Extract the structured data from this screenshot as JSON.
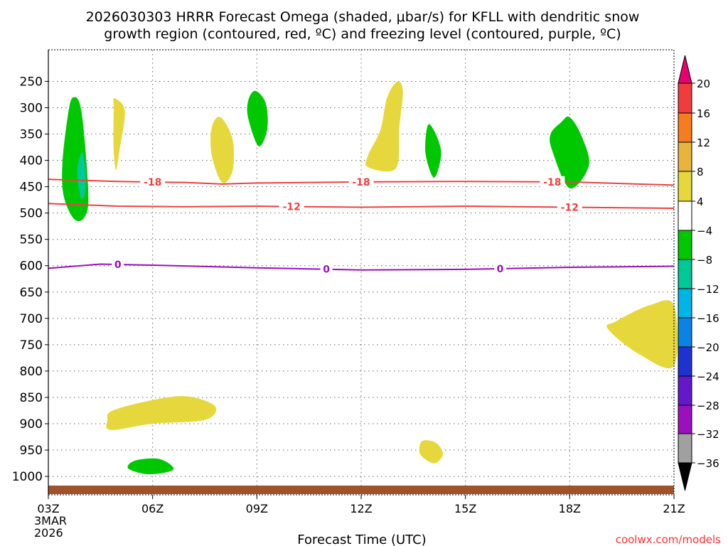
{
  "chart_data": {
    "type": "time-height",
    "title_line1": "2026030303 HRRR Forecast Omega (shaded, μbar/s) for KFLL with dendritic snow",
    "title_line2": "growth region (contoured, red, ºC) and freezing level (contoured, purple, ºC)",
    "xlabel": "Forecast Time (UTC)",
    "credit": "coolwx.com/models",
    "x_range_hours": [
      0,
      18
    ],
    "x_ticks": [
      {
        "h": 0,
        "label": "03Z"
      },
      {
        "h": 3,
        "label": "06Z"
      },
      {
        "h": 6,
        "label": "09Z"
      },
      {
        "h": 9,
        "label": "12Z"
      },
      {
        "h": 12,
        "label": "15Z"
      },
      {
        "h": 15,
        "label": "18Z"
      },
      {
        "h": 18,
        "label": "21Z"
      }
    ],
    "date_label_line1": "3MAR",
    "date_label_line2": "2026",
    "y_range_hpa": [
      1035,
      190
    ],
    "y_ticks": [
      250,
      300,
      350,
      400,
      450,
      500,
      550,
      600,
      650,
      700,
      750,
      800,
      850,
      900,
      950,
      1000
    ],
    "y_tick_labels": [
      "250",
      "300",
      "350",
      "400",
      "450",
      "500",
      "550",
      "600",
      "650",
      "700",
      "750",
      "800",
      "850",
      "900",
      "950",
      "1000"
    ],
    "grid": true,
    "colorbar": {
      "labels": [
        "20",
        "16",
        "12",
        "8",
        "4",
        "−4",
        "−8",
        "−12",
        "−16",
        "−20",
        "−24",
        "−28",
        "−32",
        "−36"
      ],
      "colors_top_to_bottom": [
        "#e8006e",
        "#f03c3c",
        "#f57c1f",
        "#e8b43c",
        "#e6d83c",
        "#ffffff",
        "#00c800",
        "#00c896",
        "#00b4e6",
        "#0a82e6",
        "#1e32d2",
        "#6419c8",
        "#9b0fbe",
        "#a0a0a0",
        "#000000"
      ]
    },
    "contours": [
      {
        "name": "dgz-top",
        "type": "temperature",
        "label": "-18",
        "color": "#f04040",
        "points": [
          [
            0,
            436
          ],
          [
            2,
            440
          ],
          [
            4,
            442
          ],
          [
            5,
            445
          ],
          [
            6,
            443
          ],
          [
            9,
            441
          ],
          [
            12,
            440
          ],
          [
            15,
            441
          ],
          [
            18,
            447
          ]
        ],
        "label_hours": [
          3,
          9,
          14.5
        ]
      },
      {
        "name": "dgz-bottom",
        "type": "temperature",
        "label": "-12",
        "color": "#f04040",
        "points": [
          [
            0,
            482
          ],
          [
            2,
            487
          ],
          [
            4,
            488
          ],
          [
            6,
            487
          ],
          [
            9,
            489
          ],
          [
            12,
            487
          ],
          [
            15,
            489
          ],
          [
            18,
            491
          ]
        ],
        "label_hours": [
          7,
          15
        ]
      },
      {
        "name": "freezing-level",
        "type": "freezing",
        "label": "0",
        "color": "#9b0fbe",
        "points": [
          [
            0,
            605
          ],
          [
            1.5,
            597
          ],
          [
            3,
            599
          ],
          [
            6,
            604
          ],
          [
            9,
            608
          ],
          [
            12,
            607
          ],
          [
            15,
            603
          ],
          [
            18,
            601
          ]
        ],
        "label_hours": [
          2,
          8,
          13
        ]
      }
    ],
    "shaded_regions": [
      {
        "color": "green",
        "omega_bin": "-8 to -4",
        "points": [
          [
            0.7,
            281
          ],
          [
            0.95,
            306
          ],
          [
            1.15,
            460
          ],
          [
            1.05,
            507
          ],
          [
            0.75,
            512
          ],
          [
            0.45,
            470
          ],
          [
            0.4,
            410
          ],
          [
            0.55,
            320
          ]
        ]
      },
      {
        "color": "teal",
        "omega_bin": "-12 to -8",
        "points": [
          [
            0.97,
            385
          ],
          [
            1.07,
            420
          ],
          [
            1.05,
            462
          ],
          [
            0.93,
            470
          ],
          [
            0.83,
            420
          ]
        ]
      },
      {
        "color": "yellow",
        "omega_bin": "4 to 8",
        "points": [
          [
            1.9,
            282
          ],
          [
            2.2,
            306
          ],
          [
            2.05,
            380
          ],
          [
            1.95,
            418
          ],
          [
            1.88,
            380
          ],
          [
            1.88,
            300
          ]
        ]
      },
      {
        "color": "yellow",
        "omega_bin": "4 to 8",
        "points": [
          [
            4.95,
            318
          ],
          [
            5.3,
            360
          ],
          [
            5.3,
            420
          ],
          [
            5.0,
            442
          ],
          [
            4.7,
            390
          ],
          [
            4.7,
            338
          ]
        ]
      },
      {
        "color": "green",
        "omega_bin": "-8 to -4",
        "points": [
          [
            5.95,
            268
          ],
          [
            6.25,
            291
          ],
          [
            6.3,
            340
          ],
          [
            6.05,
            373
          ],
          [
            5.75,
            320
          ],
          [
            5.75,
            287
          ]
        ]
      },
      {
        "color": "yellow",
        "omega_bin": "4 to 8",
        "points": [
          [
            10.05,
            250
          ],
          [
            10.2,
            270
          ],
          [
            10.1,
            335
          ],
          [
            10.0,
            415
          ],
          [
            9.2,
            413
          ],
          [
            9.2,
            390
          ],
          [
            9.55,
            343
          ],
          [
            9.75,
            280
          ]
        ]
      },
      {
        "color": "green",
        "omega_bin": "-8 to -4",
        "points": [
          [
            10.95,
            331
          ],
          [
            11.3,
            381
          ],
          [
            11.1,
            433
          ],
          [
            10.85,
            385
          ]
        ]
      },
      {
        "color": "green",
        "omega_bin": "-8 to -4",
        "points": [
          [
            15.0,
            318
          ],
          [
            15.35,
            355
          ],
          [
            15.55,
            410
          ],
          [
            15.0,
            453
          ],
          [
            14.5,
            382
          ],
          [
            14.45,
            350
          ],
          [
            14.75,
            328
          ]
        ]
      },
      {
        "color": "yellow",
        "omega_bin": "4 to 8",
        "points": [
          [
            16.35,
            705
          ],
          [
            17.3,
            675
          ],
          [
            18,
            675
          ],
          [
            18,
            790
          ],
          [
            17.0,
            768
          ],
          [
            16.1,
            720
          ]
        ]
      },
      {
        "color": "yellow",
        "omega_bin": "4 to 8",
        "points": [
          [
            1.85,
            875
          ],
          [
            3.0,
            855
          ],
          [
            4.0,
            848
          ],
          [
            4.8,
            867
          ],
          [
            4.5,
            893
          ],
          [
            3.0,
            900
          ],
          [
            1.8,
            912
          ],
          [
            1.7,
            893
          ]
        ]
      },
      {
        "color": "yellow",
        "omega_bin": "4 to 8",
        "points": [
          [
            10.75,
            933
          ],
          [
            11.15,
            936
          ],
          [
            11.35,
            958
          ],
          [
            11.1,
            975
          ],
          [
            10.7,
            958
          ]
        ]
      },
      {
        "color": "green",
        "omega_bin": "-8 to -4",
        "points": [
          [
            2.5,
            970
          ],
          [
            3.2,
            967
          ],
          [
            3.6,
            987
          ],
          [
            2.9,
            996
          ],
          [
            2.3,
            985
          ]
        ]
      }
    ]
  }
}
